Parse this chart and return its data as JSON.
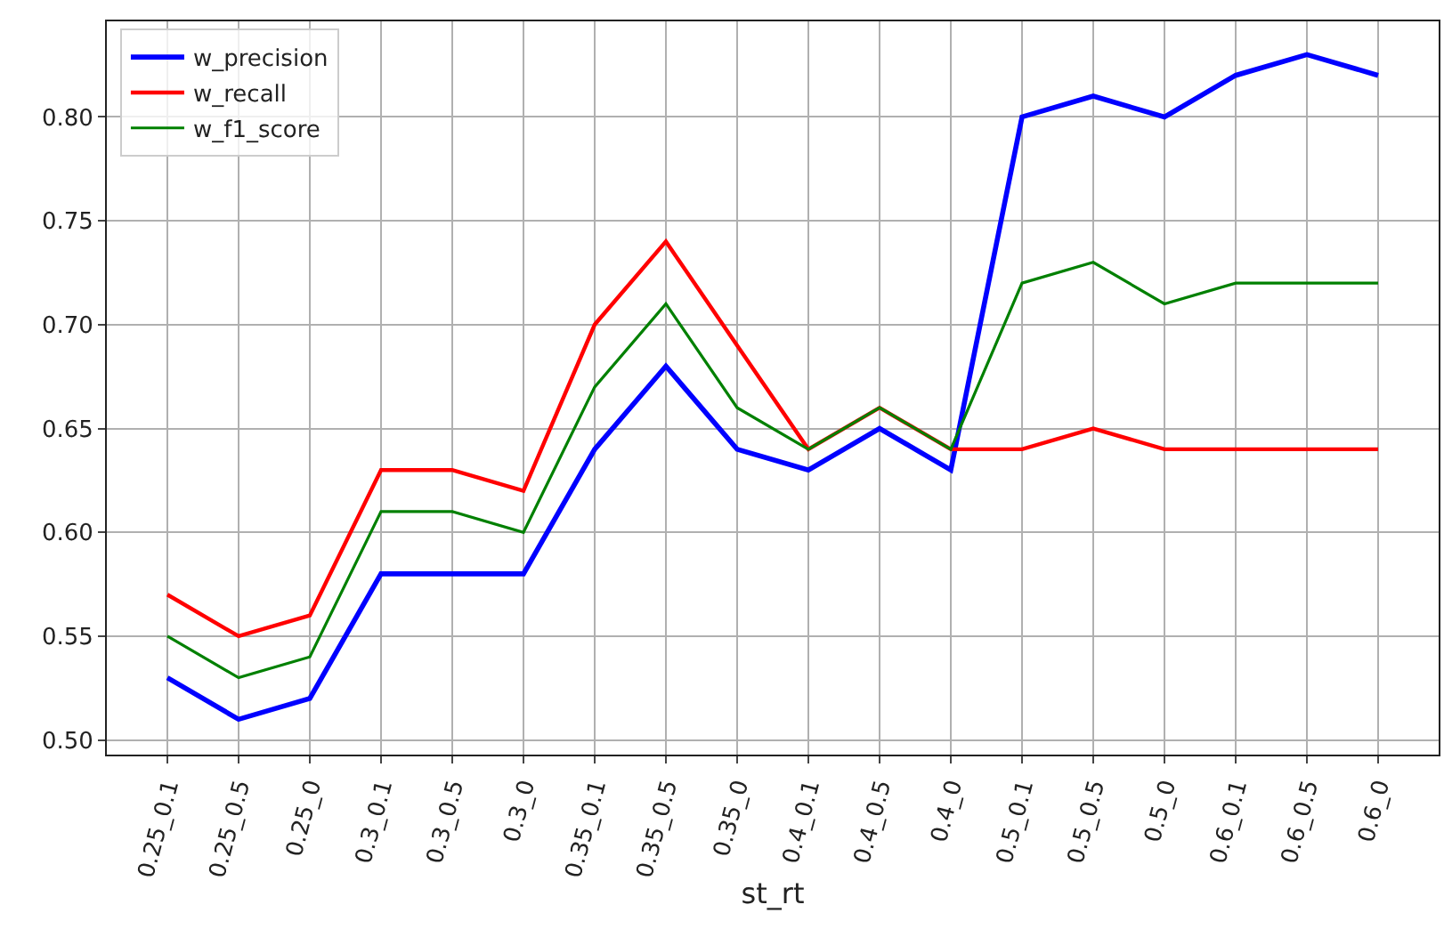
{
  "chart_data": {
    "type": "line",
    "xlabel": "st_rt",
    "categories": [
      "0.25_0.1",
      "0.25_0.5",
      "0.25_0",
      "0.3_0.1",
      "0.3_0.5",
      "0.3_0",
      "0.35_0.1",
      "0.35_0.5",
      "0.35_0",
      "0.4_0.1",
      "0.4_0.5",
      "0.4_0",
      "0.5_0.1",
      "0.5_0.5",
      "0.5_0",
      "0.6_0.1",
      "0.6_0.5",
      "0.6_0"
    ],
    "series": [
      {
        "name": "w_precision",
        "color": "#0000ff",
        "values": [
          0.53,
          0.51,
          0.52,
          0.58,
          0.58,
          0.58,
          0.64,
          0.68,
          0.64,
          0.63,
          0.65,
          0.63,
          0.8,
          0.81,
          0.8,
          0.82,
          0.83,
          0.82
        ]
      },
      {
        "name": "w_recall",
        "color": "#ff0000",
        "values": [
          0.57,
          0.55,
          0.56,
          0.63,
          0.63,
          0.62,
          0.7,
          0.74,
          0.69,
          0.64,
          0.66,
          0.64,
          0.64,
          0.65,
          0.64,
          0.64,
          0.64,
          0.64
        ]
      },
      {
        "name": "w_f1_score",
        "color": "#008000",
        "values": [
          0.55,
          0.53,
          0.54,
          0.61,
          0.61,
          0.6,
          0.67,
          0.71,
          0.66,
          0.64,
          0.66,
          0.64,
          0.72,
          0.73,
          0.71,
          0.72,
          0.72,
          0.72
        ]
      }
    ],
    "ylim": [
      0.493,
      0.846
    ],
    "yticks": [
      {
        "value": 0.5,
        "label": "0.50"
      },
      {
        "value": 0.55,
        "label": "0.55"
      },
      {
        "value": 0.6,
        "label": "0.60"
      },
      {
        "value": 0.65,
        "label": "0.65"
      },
      {
        "value": 0.7,
        "label": "0.70"
      },
      {
        "value": 0.75,
        "label": "0.75"
      },
      {
        "value": 0.8,
        "label": "0.80"
      }
    ],
    "grid": true,
    "legend": "top left",
    "marker": "none",
    "line_style": "solid"
  }
}
